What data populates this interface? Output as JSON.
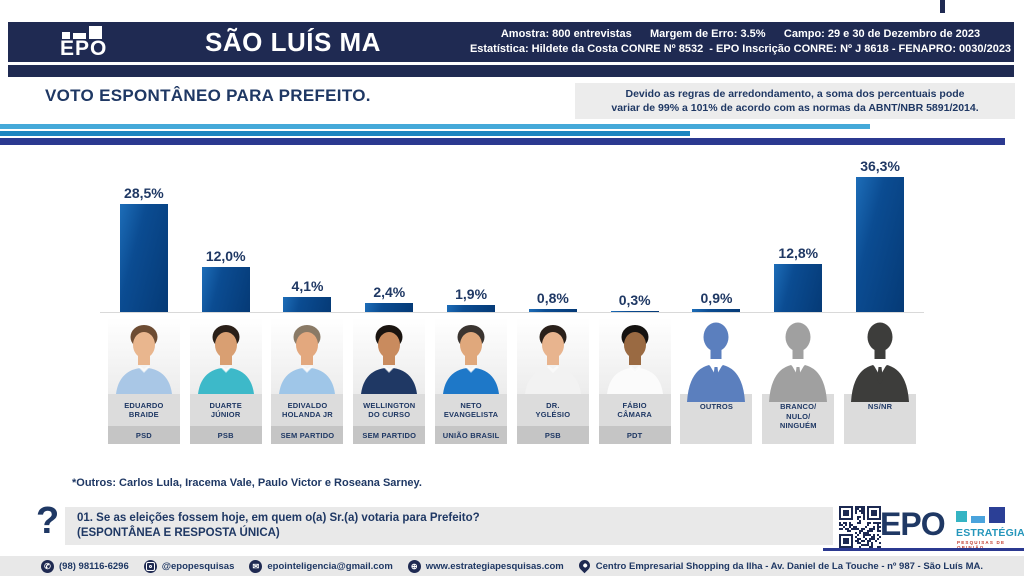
{
  "header": {
    "logo_text": "EPO",
    "city_title": "SÃO LUÍS MA",
    "stats_line1": "Amostra: 800 entrevistas      Margem de Erro: 3.5%      Campo: 29 e 30 de Dezembro de 2023",
    "stats_line2": "Estatística: Hildete da Costa CONRE Nº 8532  - EPO Inscrição CONRE: Nº J 8618 - FENAPRO: 0030/2023"
  },
  "title": "VOTO ESPONTÂNEO PARA PREFEITO.",
  "rounding_note": {
    "line1": "Devido as regras de arredondamento, a soma dos percentuais pode",
    "line2": "variar de 99% a 101% de acordo com as normas da ABNT/NBR 5891/2014."
  },
  "chart_data": {
    "type": "bar",
    "title": "VOTO ESPONTÂNEO PARA PREFEITO.",
    "ylim": [
      0,
      40
    ],
    "grid": false,
    "bar_gradient": [
      "#1d6db8",
      "#0b4c92",
      "#053a76"
    ],
    "value_label_color": "#1f3864",
    "categories": [
      "EDUARDO BRAIDE",
      "DUARTE JÚNIOR",
      "EDIVALDO HOLANDA JR",
      "WELLINGTON DO CURSO",
      "NETO EVANGELISTA",
      "DR. YGLÉSIO",
      "FÁBIO CÂMARA",
      "OUTROS",
      "BRANCO/ NULO/ NINGUÉM",
      "NS/NR"
    ],
    "values": [
      28.5,
      12.0,
      4.1,
      2.4,
      1.9,
      0.8,
      0.3,
      0.9,
      12.8,
      36.3
    ],
    "columns": [
      {
        "name_lines": [
          "EDUARDO",
          "BRAIDE"
        ],
        "party": "PSD",
        "value": 28.5,
        "value_label": "28,5%",
        "kind": "photo",
        "shirt": "#a9c7e6",
        "skin": "#e9b68e",
        "hair": "#6d4c33"
      },
      {
        "name_lines": [
          "DUARTE",
          "JÚNIOR"
        ],
        "party": "PSB",
        "value": 12.0,
        "value_label": "12,0%",
        "kind": "photo",
        "shirt": "#3db9c9",
        "skin": "#d99f72",
        "hair": "#2a1f18"
      },
      {
        "name_lines": [
          "EDIVALDO",
          "HOLANDA JR"
        ],
        "party": "SEM PARTIDO",
        "value": 4.1,
        "value_label": "4,1%",
        "kind": "photo",
        "shirt": "#9fc6e8",
        "skin": "#e3a87e",
        "hair": "#8a7a66"
      },
      {
        "name_lines": [
          "WELLINGTON",
          "DO CURSO"
        ],
        "party": "SEM PARTIDO",
        "value": 2.4,
        "value_label": "2,4%",
        "kind": "photo",
        "shirt": "#1f3864",
        "skin": "#c98b5e",
        "hair": "#1a1410"
      },
      {
        "name_lines": [
          "NETO",
          "EVANGELISTA"
        ],
        "party": "UNIÃO BRASIL",
        "value": 1.9,
        "value_label": "1,9%",
        "kind": "photo",
        "shirt": "#1e78c8",
        "skin": "#e0a87c",
        "hair": "#3a3430"
      },
      {
        "name_lines": [
          "DR.",
          "YGLÉSIO"
        ],
        "party": "PSB",
        "value": 0.8,
        "value_label": "0,8%",
        "kind": "photo",
        "shirt": "#f2f2f2",
        "skin": "#e8b48e",
        "hair": "#2a201a"
      },
      {
        "name_lines": [
          "FÁBIO",
          "CÂMARA"
        ],
        "party": "PDT",
        "value": 0.3,
        "value_label": "0,3%",
        "kind": "photo",
        "shirt": "#fbfbfb",
        "skin": "#9a6a42",
        "hair": "#141210"
      },
      {
        "name_lines": [
          "OUTROS"
        ],
        "party": "",
        "value": 0.9,
        "value_label": "0,9%",
        "kind": "silhouette",
        "fill": "#5b7fbe"
      },
      {
        "name_lines": [
          "BRANCO/",
          "NULO/",
          "NINGUÉM"
        ],
        "party": "",
        "value": 12.8,
        "value_label": "12,8%",
        "kind": "silhouette",
        "fill": "#a0a0a0"
      },
      {
        "name_lines": [
          "NS/NR"
        ],
        "party": "",
        "value": 36.3,
        "value_label": "36,3%",
        "kind": "silhouette",
        "fill": "#3d3d3b"
      }
    ]
  },
  "footnote": "*Outros: Carlos Lula, Iracema Vale, Paulo Victor e Roseana Sarney.",
  "question": {
    "mark": "?",
    "line1": "01. Se as eleições fossem hoje, em quem o(a) Sr.(a) votaria para Prefeito?",
    "line2": "(ESPONTÂNEA E RESPOSTA ÚNICA)"
  },
  "brand": {
    "epo": "EPO",
    "estrategia": "ESTRATÉGIA",
    "tagline": "PESQUISAS DE OPINIÃO",
    "colors": {
      "navy": "#1f3864",
      "teal": "#35b4c3",
      "light_blue": "#4aa3dc",
      "blue": "#2b3f96",
      "red": "#c0392b"
    }
  },
  "footer": {
    "items": [
      {
        "icon": "phone-icon",
        "text": "(98) 98116-6296"
      },
      {
        "icon": "instagram-icon",
        "text": "@epopesquisas"
      },
      {
        "icon": "email-icon",
        "text": "epointeligencia@gmail.com"
      },
      {
        "icon": "globe-icon",
        "text": "www.estrategiapesquisas.com"
      },
      {
        "icon": "location-icon",
        "text": "Centro Empresarial Shopping da Ilha - Av. Daniel de La Touche - nº 987 - São Luís MA."
      }
    ]
  }
}
